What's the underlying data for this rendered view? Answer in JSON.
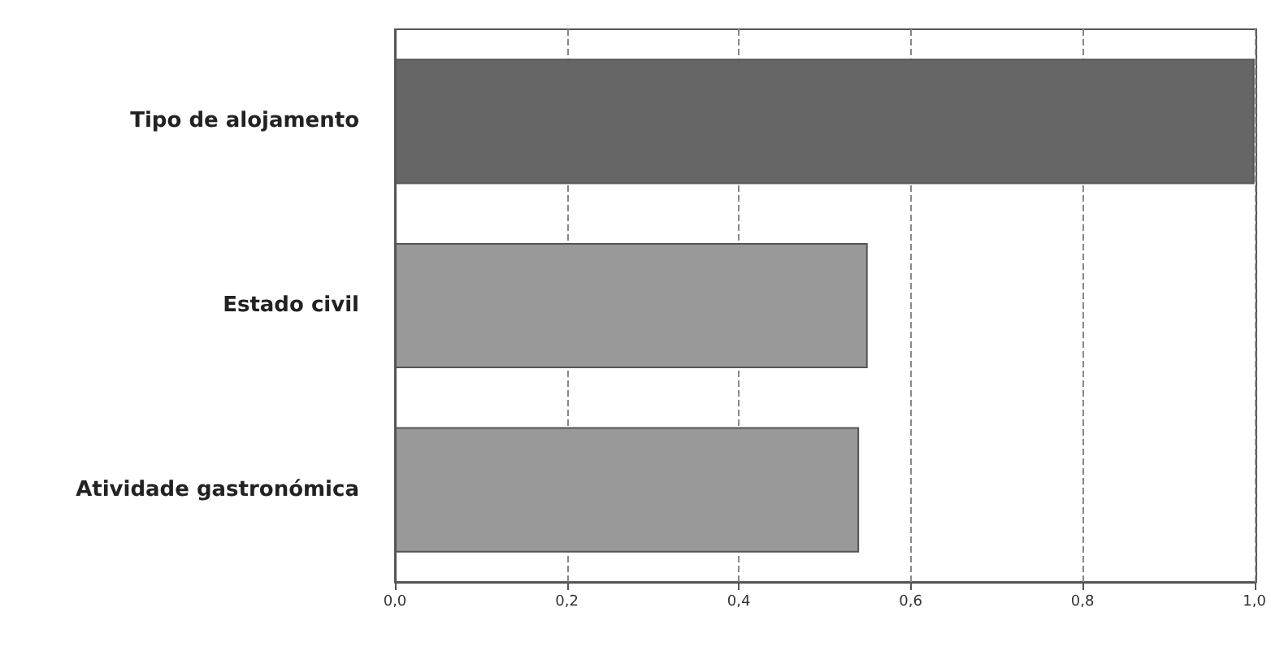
{
  "chart_data": {
    "type": "bar",
    "orientation": "horizontal",
    "categories": [
      "Tipo de alojamento",
      "Estado civil",
      "Atividade gastronómica"
    ],
    "values": [
      1.0,
      0.55,
      0.54
    ],
    "colors": [
      "#666666",
      "#999999",
      "#999999"
    ],
    "xlim": [
      0,
      1
    ],
    "xticks": [
      {
        "value": 0,
        "label": "0,0"
      },
      {
        "value": 0.2,
        "label": "0,2"
      },
      {
        "value": 0.4,
        "label": "0,4"
      },
      {
        "value": 0.6,
        "label": "0,6"
      },
      {
        "value": 0.8,
        "label": "0,8"
      },
      {
        "value": 1,
        "label": "1,0"
      }
    ],
    "grid": "x"
  }
}
